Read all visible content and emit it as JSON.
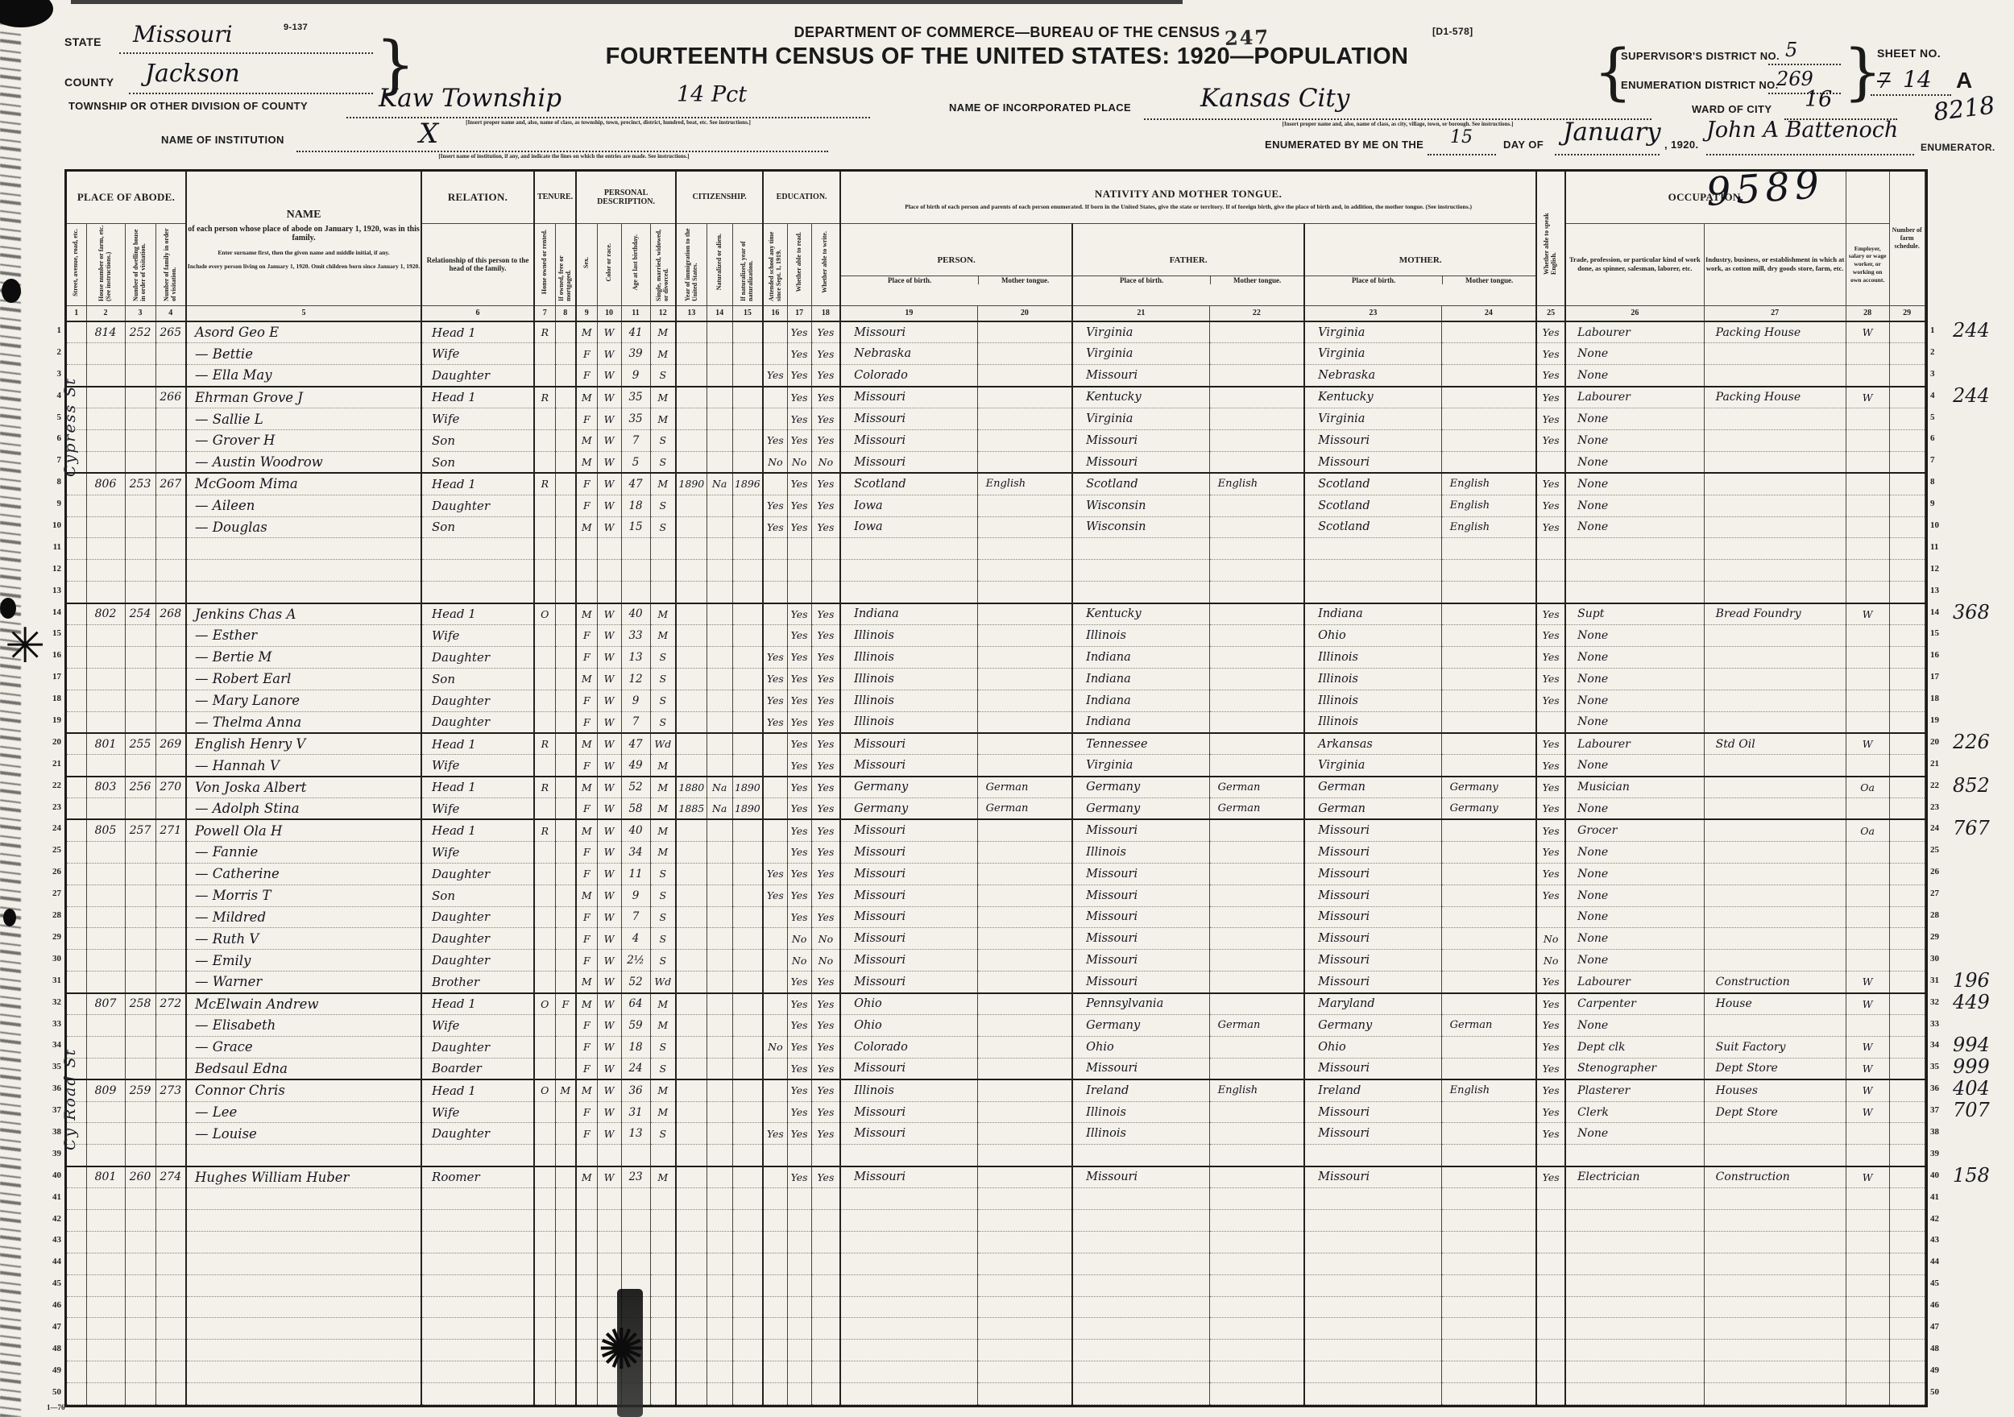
{
  "form": {
    "code": "9-137",
    "stamp": "247",
    "doc_ref": "[D1-578]",
    "dept": "DEPARTMENT OF COMMERCE—BUREAU OF THE CENSUS",
    "title": "FOURTEENTH CENSUS OF THE UNITED STATES: 1920—POPULATION",
    "state_label": "STATE",
    "state": "Missouri",
    "county_label": "COUNTY",
    "county": "Jackson",
    "township_label": "TOWNSHIP OR OTHER DIVISION OF COUNTY",
    "township": "Kaw Township",
    "township_extra": "14 Pct",
    "township_note": "[Insert proper name and, also, name of class, as township, town, precinct, district, hundred, beat, etc.  See instructions.]",
    "place_label": "NAME OF INCORPORATED PLACE",
    "place": "Kansas City",
    "place_note": "[Insert proper name and, also, name of class, as city, village, town, or borough.  See instructions.]",
    "ward_label": "WARD OF CITY",
    "ward": "16",
    "institution_label": "NAME OF INSTITUTION",
    "institution_note": "[Insert name of institution, if any, and indicate the lines on which the entries are made.  See instructions.]",
    "institution_mark": "X",
    "supervisor_label": "SUPERVISOR'S DISTRICT NO.",
    "supervisor_no": "5",
    "enumeration_label": "ENUMERATION DISTRICT NO.",
    "enumeration_no": "269",
    "sheet_label": "SHEET NO.",
    "sheet_struck": "7",
    "sheet_no": "14",
    "sheet_suffix": "A",
    "enumerated_label": "ENUMERATED BY ME ON THE",
    "enumerated_day": "15",
    "day_of_label": "DAY OF",
    "enumerated_month": "January",
    "year_label": ", 1920.",
    "enumerator_name": "John A Battenoch",
    "enumerator_label": "ENUMERATOR.",
    "corner_number": "8218",
    "occupation_stamp": "9589",
    "footer_code": "1—76",
    "street_label_top": "Cypress St",
    "street_label_bottom": "Cy Road St",
    "star_glyph": "✳",
    "big_star_glyph": "✺"
  },
  "table": {
    "group_place": "PLACE OF ABODE.",
    "group_tenure": "TENURE.",
    "group_personal": "PERSONAL DESCRIPTION.",
    "group_citizenship": "CITIZENSHIP.",
    "group_education": "EDUCATION.",
    "group_nativity": "NATIVITY AND MOTHER TONGUE.",
    "group_occupation": "OCCUPATION.",
    "nativity_note": "Place of birth of each person and parents of each person enumerated.  If born in the United States, give the state or territory.  If of foreign birth, give the place of birth and, in addition, the mother tongue.  (See instructions.)",
    "person": "PERSON.",
    "father": "FATHER.",
    "mother": "MOTHER.",
    "pob": "Place of birth.",
    "mtongue": "Mother tongue.",
    "name_title": "NAME",
    "name_sub": "of each person whose place of abode on January 1, 1920, was in this family.",
    "name_note1": "Enter surname first, then the given name and middle initial, if any.",
    "name_note2": "Include every person living on January 1, 1920.  Omit children born since January 1, 1920.",
    "relation_title": "RELATION.",
    "relation_sub": "Relationship of this person to the head of the family.",
    "c1": "Street, avenue, road, etc.",
    "c2": "House number or farm, etc. (See instructions.)",
    "c3": "Number of dwelling house in order of visitation.",
    "c4": "Number of family in order of visitation.",
    "c7": "Home owned or rented.",
    "c8": "If owned, free or mortgaged.",
    "c9": "Sex.",
    "c10": "Color or race.",
    "c11": "Age at last birthday.",
    "c12": "Single, married, widowed, or divorced.",
    "c13": "Year of immigration to the United States.",
    "c14": "Naturalized or alien.",
    "c15": "If naturalized, year of naturalization.",
    "c16": "Attended school any time since Sept. 1, 1919.",
    "c17": "Whether able to read.",
    "c18": "Whether able to write.",
    "c25": "Whether able to speak English.",
    "c26": "Trade, profession, or particular kind of work done, as spinner, salesman, laborer, etc.",
    "c27": "Industry, business, or establishment in which at work, as cotton mill, dry goods store, farm, etc.",
    "c28": "Employer, salary or wage worker, or working on own account.",
    "c29": "Number of farm schedule.",
    "col_numbers": [
      "1",
      "2",
      "3",
      "4",
      "5",
      "6",
      "7",
      "8",
      "9",
      "10",
      "11",
      "12",
      "13",
      "14",
      "15",
      "16",
      "17",
      "18",
      "19",
      "20",
      "21",
      "22",
      "23",
      "24",
      "25",
      "26",
      "27",
      "28",
      "29"
    ]
  },
  "rows": [
    {
      "house": "814",
      "dw": "252",
      "fam": "265",
      "name": "Asord Geo E",
      "rel": "Head 1",
      "t7": "R",
      "sex": "M",
      "race": "W",
      "age": "41",
      "mar": "M",
      "r": "Yes",
      "w": "Yes",
      "pb": "Missouri",
      "fpb": "Virginia",
      "mpb": "Virginia",
      "eng": "Yes",
      "trade": "Labourer",
      "ind": "Packing House",
      "emp": "W",
      "margin": "244"
    },
    {
      "name": "— Bettie",
      "rel": "Wife",
      "sex": "F",
      "race": "W",
      "age": "39",
      "mar": "M",
      "r": "Yes",
      "w": "Yes",
      "pb": "Nebraska",
      "fpb": "Virginia",
      "mpb": "Virginia",
      "eng": "Yes",
      "trade": "None"
    },
    {
      "name": "— Ella May",
      "rel": "Daughter",
      "sex": "F",
      "race": "W",
      "age": "9",
      "mar": "S",
      "sch": "Yes",
      "r": "Yes",
      "w": "Yes",
      "pb": "Colorado",
      "fpb": "Missouri",
      "mpb": "Nebraska",
      "eng": "Yes",
      "trade": "None"
    },
    {
      "fs": 1,
      "fam": "266",
      "name": "Ehrman Grove J",
      "rel": "Head 1",
      "t7": "R",
      "sex": "M",
      "race": "W",
      "age": "35",
      "mar": "M",
      "r": "Yes",
      "w": "Yes",
      "pb": "Missouri",
      "fpb": "Kentucky",
      "mpb": "Kentucky",
      "eng": "Yes",
      "trade": "Labourer",
      "ind": "Packing House",
      "emp": "W",
      "margin": "244"
    },
    {
      "name": "— Sallie L",
      "rel": "Wife",
      "sex": "F",
      "race": "W",
      "age": "35",
      "mar": "M",
      "r": "Yes",
      "w": "Yes",
      "pb": "Missouri",
      "fpb": "Virginia",
      "mpb": "Virginia",
      "eng": "Yes",
      "trade": "None"
    },
    {
      "name": "— Grover H",
      "rel": "Son",
      "sex": "M",
      "race": "W",
      "age": "7",
      "mar": "S",
      "sch": "Yes",
      "r": "Yes",
      "w": "Yes",
      "pb": "Missouri",
      "fpb": "Missouri",
      "mpb": "Missouri",
      "eng": "Yes",
      "trade": "None"
    },
    {
      "name": "— Austin Woodrow",
      "rel": "Son",
      "sex": "M",
      "race": "W",
      "age": "5",
      "mar": "S",
      "sch": "No",
      "r": "No",
      "w": "No",
      "pb": "Missouri",
      "fpb": "Missouri",
      "mpb": "Missouri",
      "trade": "None"
    },
    {
      "fs": 1,
      "house": "806",
      "dw": "253",
      "fam": "267",
      "name": "McGoom Mima",
      "rel": "Head 1",
      "t7": "R",
      "sex": "F",
      "race": "W",
      "age": "47",
      "mar": "M",
      "imm": "1890",
      "nat": "Na",
      "natyr": "1896",
      "r": "Yes",
      "w": "Yes",
      "pb": "Scotland",
      "mt": "English",
      "fpb": "Scotland",
      "fmt": "English",
      "mpb": "Scotland",
      "mmt": "English",
      "eng": "Yes",
      "trade": "None"
    },
    {
      "name": "— Aileen",
      "rel": "Daughter",
      "sex": "F",
      "race": "W",
      "age": "18",
      "mar": "S",
      "sch": "Yes",
      "r": "Yes",
      "w": "Yes",
      "pb": "Iowa",
      "fpb": "Wisconsin",
      "mpb": "Scotland",
      "mmt": "English",
      "eng": "Yes",
      "trade": "None"
    },
    {
      "name": "— Douglas",
      "rel": "Son",
      "sex": "M",
      "race": "W",
      "age": "15",
      "mar": "S",
      "sch": "Yes",
      "r": "Yes",
      "w": "Yes",
      "pb": "Iowa",
      "fpb": "Wisconsin",
      "mpb": "Scotland",
      "mmt": "English",
      "eng": "Yes",
      "trade": "None"
    },
    {},
    {},
    {},
    {
      "fs": 1,
      "house": "802",
      "dw": "254",
      "fam": "268",
      "name": "Jenkins Chas A",
      "rel": "Head 1",
      "t7": "O",
      "sex": "M",
      "race": "W",
      "age": "40",
      "mar": "M",
      "r": "Yes",
      "w": "Yes",
      "pb": "Indiana",
      "fpb": "Kentucky",
      "mpb": "Indiana",
      "eng": "Yes",
      "trade": "Supt",
      "ind": "Bread Foundry",
      "emp": "W",
      "margin": "368"
    },
    {
      "name": "— Esther",
      "rel": "Wife",
      "sex": "F",
      "race": "W",
      "age": "33",
      "mar": "M",
      "r": "Yes",
      "w": "Yes",
      "pb": "Illinois",
      "fpb": "Illinois",
      "mpb": "Ohio",
      "eng": "Yes",
      "trade": "None"
    },
    {
      "name": "— Bertie M",
      "rel": "Daughter",
      "sex": "F",
      "race": "W",
      "age": "13",
      "mar": "S",
      "sch": "Yes",
      "r": "Yes",
      "w": "Yes",
      "pb": "Illinois",
      "fpb": "Indiana",
      "mpb": "Illinois",
      "eng": "Yes",
      "trade": "None"
    },
    {
      "name": "— Robert Earl",
      "rel": "Son",
      "sex": "M",
      "race": "W",
      "age": "12",
      "mar": "S",
      "sch": "Yes",
      "r": "Yes",
      "w": "Yes",
      "pb": "Illinois",
      "fpb": "Indiana",
      "mpb": "Illinois",
      "eng": "Yes",
      "trade": "None"
    },
    {
      "name": "— Mary Lanore",
      "rel": "Daughter",
      "sex": "F",
      "race": "W",
      "age": "9",
      "mar": "S",
      "sch": "Yes",
      "r": "Yes",
      "w": "Yes",
      "pb": "Illinois",
      "fpb": "Indiana",
      "mpb": "Illinois",
      "eng": "Yes",
      "trade": "None"
    },
    {
      "name": "— Thelma Anna",
      "rel": "Daughter",
      "sex": "F",
      "race": "W",
      "age": "7",
      "mar": "S",
      "sch": "Yes",
      "r": "Yes",
      "w": "Yes",
      "pb": "Illinois",
      "fpb": "Indiana",
      "mpb": "Illinois",
      "trade": "None"
    },
    {
      "fs": 1,
      "house": "801",
      "dw": "255",
      "fam": "269",
      "name": "English Henry V",
      "rel": "Head 1",
      "t7": "R",
      "sex": "M",
      "race": "W",
      "age": "47",
      "mar": "Wd",
      "r": "Yes",
      "w": "Yes",
      "pb": "Missouri",
      "fpb": "Tennessee",
      "mpb": "Arkansas",
      "eng": "Yes",
      "trade": "Labourer",
      "ind": "Std Oil",
      "emp": "W",
      "margin": "226"
    },
    {
      "name": "— Hannah V",
      "rel": "Wife",
      "sex": "F",
      "race": "W",
      "age": "49",
      "mar": "M",
      "r": "Yes",
      "w": "Yes",
      "pb": "Missouri",
      "fpb": "Virginia",
      "mpb": "Virginia",
      "eng": "Yes",
      "trade": "None"
    },
    {
      "fs": 1,
      "house": "803",
      "dw": "256",
      "fam": "270",
      "name": "Von Joska Albert",
      "rel": "Head 1",
      "t7": "R",
      "sex": "M",
      "race": "W",
      "age": "52",
      "mar": "M",
      "imm": "1880",
      "nat": "Na",
      "natyr": "1890",
      "r": "Yes",
      "w": "Yes",
      "pb": "Germany",
      "mt": "German",
      "fpb": "Germany",
      "fmt": "German",
      "mpb": "German",
      "mmt": "Germany",
      "eng": "Yes",
      "trade": "Musician",
      "emp": "Oa",
      "margin": "852"
    },
    {
      "name": "— Adolph Stina",
      "rel": "Wife",
      "sex": "F",
      "race": "W",
      "age": "58",
      "mar": "M",
      "imm": "1885",
      "nat": "Na",
      "natyr": "1890",
      "r": "Yes",
      "w": "Yes",
      "pb": "Germany",
      "mt": "German",
      "fpb": "Germany",
      "fmt": "German",
      "mpb": "German",
      "mmt": "Germany",
      "eng": "Yes",
      "trade": "None"
    },
    {
      "fs": 1,
      "house": "805",
      "dw": "257",
      "fam": "271",
      "name": "Powell Ola H",
      "rel": "Head 1",
      "t7": "R",
      "sex": "M",
      "race": "W",
      "age": "40",
      "mar": "M",
      "r": "Yes",
      "w": "Yes",
      "pb": "Missouri",
      "fpb": "Missouri",
      "mpb": "Missouri",
      "eng": "Yes",
      "trade": "Grocer",
      "emp": "Oa",
      "margin": "767"
    },
    {
      "name": "— Fannie",
      "rel": "Wife",
      "sex": "F",
      "race": "W",
      "age": "34",
      "mar": "M",
      "r": "Yes",
      "w": "Yes",
      "pb": "Missouri",
      "fpb": "Illinois",
      "mpb": "Missouri",
      "eng": "Yes",
      "trade": "None"
    },
    {
      "name": "— Catherine",
      "rel": "Daughter",
      "sex": "F",
      "race": "W",
      "age": "11",
      "mar": "S",
      "sch": "Yes",
      "r": "Yes",
      "w": "Yes",
      "pb": "Missouri",
      "fpb": "Missouri",
      "mpb": "Missouri",
      "eng": "Yes",
      "trade": "None"
    },
    {
      "name": "— Morris T",
      "rel": "Son",
      "sex": "M",
      "race": "W",
      "age": "9",
      "mar": "S",
      "sch": "Yes",
      "r": "Yes",
      "w": "Yes",
      "pb": "Missouri",
      "fpb": "Missouri",
      "mpb": "Missouri",
      "eng": "Yes",
      "trade": "None"
    },
    {
      "name": "— Mildred",
      "rel": "Daughter",
      "sex": "F",
      "race": "W",
      "age": "7",
      "mar": "S",
      "r": "Yes",
      "w": "Yes",
      "pb": "Missouri",
      "fpb": "Missouri",
      "mpb": "Missouri",
      "trade": "None"
    },
    {
      "name": "— Ruth V",
      "rel": "Daughter",
      "sex": "F",
      "race": "W",
      "age": "4",
      "mar": "S",
      "r": "No",
      "w": "No",
      "pb": "Missouri",
      "fpb": "Missouri",
      "mpb": "Missouri",
      "eng": "No",
      "trade": "None"
    },
    {
      "name": "— Emily",
      "rel": "Daughter",
      "sex": "F",
      "race": "W",
      "age": "2½",
      "mar": "S",
      "r": "No",
      "w": "No",
      "pb": "Missouri",
      "fpb": "Missouri",
      "mpb": "Missouri",
      "eng": "No",
      "trade": "None"
    },
    {
      "name": "— Warner",
      "rel": "Brother",
      "sex": "M",
      "race": "W",
      "age": "52",
      "mar": "Wd",
      "r": "Yes",
      "w": "Yes",
      "pb": "Missouri",
      "fpb": "Missouri",
      "mpb": "Missouri",
      "eng": "Yes",
      "trade": "Labourer",
      "ind": "Construction",
      "emp": "W",
      "margin": "196"
    },
    {
      "fs": 1,
      "house": "807",
      "dw": "258",
      "fam": "272",
      "name": "McElwain Andrew",
      "rel": "Head 1",
      "t7": "O",
      "t8": "F",
      "sex": "M",
      "race": "W",
      "age": "64",
      "mar": "M",
      "r": "Yes",
      "w": "Yes",
      "pb": "Ohio",
      "fpb": "Pennsylvania",
      "mpb": "Maryland",
      "eng": "Yes",
      "trade": "Carpenter",
      "ind": "House",
      "emp": "W",
      "margin": "449"
    },
    {
      "name": "— Elisabeth",
      "rel": "Wife",
      "sex": "F",
      "race": "W",
      "age": "59",
      "mar": "M",
      "r": "Yes",
      "w": "Yes",
      "pb": "Ohio",
      "fpb": "Germany",
      "fmt": "German",
      "mpb": "Germany",
      "mmt": "German",
      "eng": "Yes",
      "trade": "None"
    },
    {
      "name": "— Grace",
      "rel": "Daughter",
      "sex": "F",
      "race": "W",
      "age": "18",
      "mar": "S",
      "sch": "No",
      "r": "Yes",
      "w": "Yes",
      "pb": "Colorado",
      "fpb": "Ohio",
      "mpb": "Ohio",
      "eng": "Yes",
      "trade": "Dept clk",
      "ind": "Suit Factory",
      "emp": "W",
      "margin": "994"
    },
    {
      "name": "Bedsaul Edna",
      "rel": "Boarder",
      "sex": "F",
      "race": "W",
      "age": "24",
      "mar": "S",
      "r": "Yes",
      "w": "Yes",
      "pb": "Missouri",
      "fpb": "Missouri",
      "mpb": "Missouri",
      "eng": "Yes",
      "trade": "Stenographer",
      "ind": "Dept Store",
      "emp": "W",
      "margin": "999"
    },
    {
      "fs": 1,
      "house": "809",
      "dw": "259",
      "fam": "273",
      "name": "Connor Chris",
      "rel": "Head 1",
      "t7": "O",
      "t8": "M",
      "sex": "M",
      "race": "W",
      "age": "36",
      "mar": "M",
      "r": "Yes",
      "w": "Yes",
      "pb": "Illinois",
      "fpb": "Ireland",
      "fmt": "English",
      "mpb": "Ireland",
      "mmt": "English",
      "eng": "Yes",
      "trade": "Plasterer",
      "ind": "Houses",
      "emp": "W",
      "margin": "404"
    },
    {
      "name": "— Lee",
      "rel": "Wife",
      "sex": "F",
      "race": "W",
      "age": "31",
      "mar": "M",
      "r": "Yes",
      "w": "Yes",
      "pb": "Missouri",
      "fpb": "Illinois",
      "mpb": "Missouri",
      "eng": "Yes",
      "trade": "Clerk",
      "ind": "Dept Store",
      "emp": "W",
      "margin": "707"
    },
    {
      "name": "— Louise",
      "rel": "Daughter",
      "sex": "F",
      "race": "W",
      "age": "13",
      "mar": "S",
      "sch": "Yes",
      "r": "Yes",
      "w": "Yes",
      "pb": "Missouri",
      "fpb": "Illinois",
      "mpb": "Missouri",
      "eng": "Yes",
      "trade": "None"
    },
    {},
    {
      "fs": 1,
      "house": "801",
      "dw": "260",
      "fam": "274",
      "name": "Hughes William Huber",
      "rel": "Roomer",
      "sex": "M",
      "race": "W",
      "age": "23",
      "mar": "M",
      "r": "Yes",
      "w": "Yes",
      "pb": "Missouri",
      "fpb": "Missouri",
      "mpb": "Missouri",
      "eng": "Yes",
      "trade": "Electrician",
      "ind": "Construction",
      "emp": "W",
      "margin": "158"
    },
    {},
    {},
    {},
    {},
    {},
    {},
    {},
    {},
    {},
    {}
  ]
}
